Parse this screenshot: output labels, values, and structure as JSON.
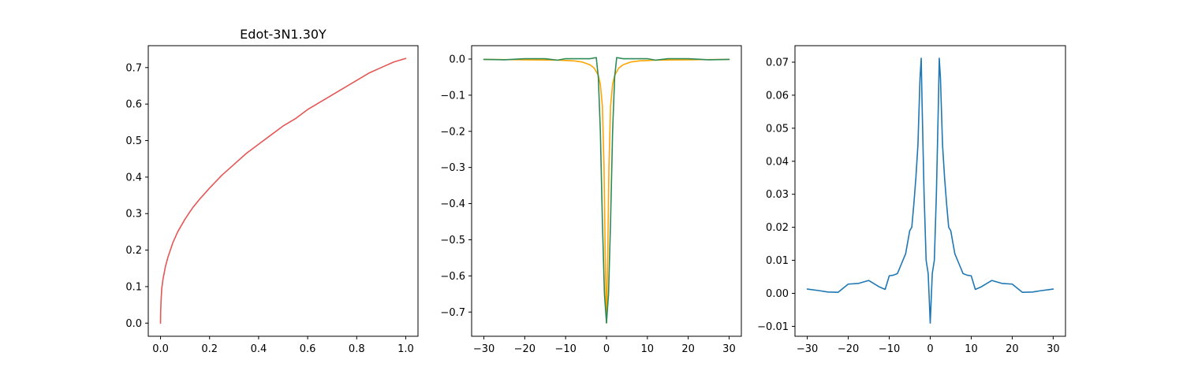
{
  "chart_data": [
    {
      "type": "line",
      "title": "Edot-3N1.30Y",
      "xlim": [
        -0.05,
        1.05
      ],
      "ylim": [
        -0.036,
        0.76
      ],
      "xticks": [
        0.0,
        0.2,
        0.4,
        0.6,
        0.8,
        1.0
      ],
      "xtick_labels": [
        "0.0",
        "0.2",
        "0.4",
        "0.6",
        "0.8",
        "1.0"
      ],
      "yticks": [
        0.0,
        0.1,
        0.2,
        0.3,
        0.4,
        0.5,
        0.6,
        0.7
      ],
      "ytick_labels": [
        "0.0",
        "0.1",
        "0.2",
        "0.3",
        "0.4",
        "0.5",
        "0.6",
        "0.7"
      ],
      "grid": false,
      "series": [
        {
          "color": "#e45756",
          "x": [
            0,
            0.0005,
            0.002,
            0.005,
            0.01,
            0.02,
            0.03,
            0.05,
            0.07,
            0.1,
            0.13,
            0.16,
            0.2,
            0.25,
            0.3,
            0.35,
            0.4,
            0.45,
            0.5,
            0.55,
            0.6,
            0.65,
            0.7,
            0.75,
            0.8,
            0.85,
            0.9,
            0.95,
            1.0
          ],
          "y": [
            0,
            0.03,
            0.06,
            0.095,
            0.12,
            0.155,
            0.18,
            0.22,
            0.25,
            0.285,
            0.315,
            0.34,
            0.37,
            0.405,
            0.435,
            0.465,
            0.49,
            0.515,
            0.54,
            0.56,
            0.585,
            0.605,
            0.625,
            0.645,
            0.665,
            0.685,
            0.7,
            0.715,
            0.725
          ]
        }
      ]
    },
    {
      "type": "line",
      "title": "",
      "xlim": [
        -33,
        33
      ],
      "ylim": [
        -0.767,
        0.037
      ],
      "xticks": [
        -30,
        -20,
        -10,
        0,
        10,
        20,
        30
      ],
      "xtick_labels": [
        "−30",
        "−20",
        "−10",
        "0",
        "10",
        "20",
        "30"
      ],
      "yticks": [
        0.0,
        -0.1,
        -0.2,
        -0.3,
        -0.4,
        -0.5,
        -0.6,
        -0.7
      ],
      "ytick_labels": [
        "0.0",
        "−0.1",
        "−0.2",
        "−0.3",
        "−0.4",
        "−0.5",
        "−0.6",
        "−0.7"
      ],
      "grid": false,
      "series": [
        {
          "color": "#ffa500",
          "x": [
            -30,
            -20,
            -12,
            -8,
            -6,
            -4,
            -3,
            -2,
            -1.5,
            -1,
            -0.6,
            -0.3,
            0,
            0.3,
            0.6,
            1,
            1.5,
            2,
            3,
            4,
            6,
            8,
            12,
            20,
            30
          ],
          "y": [
            -0.001,
            -0.002,
            -0.003,
            -0.005,
            -0.008,
            -0.016,
            -0.025,
            -0.045,
            -0.07,
            -0.13,
            -0.3,
            -0.55,
            -0.73,
            -0.55,
            -0.3,
            -0.13,
            -0.07,
            -0.045,
            -0.025,
            -0.016,
            -0.008,
            -0.005,
            -0.003,
            -0.002,
            -0.001
          ]
        },
        {
          "color": "#2e8b57",
          "x": [
            -30,
            -25,
            -20,
            -15,
            -12,
            -10,
            -6,
            -4,
            -3,
            -2.5,
            -2,
            -1.5,
            -1,
            -0.5,
            0,
            0.5,
            1,
            1.5,
            2,
            2.5,
            3,
            4,
            6,
            10,
            12,
            15,
            20,
            25,
            30
          ],
          "y": [
            -0.001,
            -0.002,
            0.001,
            0.001,
            -0.003,
            0.001,
            0.001,
            0.001,
            0.003,
            0.004,
            -0.05,
            -0.2,
            -0.45,
            -0.65,
            -0.73,
            -0.65,
            -0.45,
            -0.2,
            -0.05,
            0.004,
            0.003,
            0.001,
            0.001,
            0.001,
            -0.003,
            0.001,
            0.001,
            -0.002,
            -0.001
          ]
        }
      ]
    },
    {
      "type": "line",
      "title": "",
      "xlim": [
        -33,
        33
      ],
      "ylim": [
        -0.013,
        0.075
      ],
      "xticks": [
        -30,
        -20,
        -10,
        0,
        10,
        20,
        30
      ],
      "xtick_labels": [
        "−30",
        "−20",
        "−10",
        "0",
        "10",
        "20",
        "30"
      ],
      "yticks": [
        -0.01,
        0.0,
        0.01,
        0.02,
        0.03,
        0.04,
        0.05,
        0.06,
        0.07
      ],
      "ytick_labels": [
        "−0.01",
        "0.00",
        "0.01",
        "0.02",
        "0.03",
        "0.04",
        "0.05",
        "0.06",
        "0.07"
      ],
      "grid": false,
      "series": [
        {
          "color": "#1f77b4",
          "x": [
            -30,
            -27,
            -25,
            -22.5,
            -20,
            -17.5,
            -15,
            -12.5,
            -11,
            -10,
            -9,
            -8,
            -7,
            -6,
            -5,
            -4.5,
            -4,
            -3.5,
            -3,
            -2.5,
            -2.2,
            -2,
            -1.5,
            -1,
            -0.5,
            0,
            0.5,
            1,
            1.5,
            2,
            2.2,
            2.5,
            3,
            3.5,
            4,
            4.5,
            5,
            6,
            7,
            8,
            9,
            10,
            11,
            12.5,
            15,
            17.5,
            20,
            22.5,
            25,
            27,
            30
          ],
          "y": [
            0.0013,
            0.0008,
            0.0004,
            0.0003,
            0.0028,
            0.003,
            0.0039,
            0.002,
            0.0012,
            0.0053,
            0.0055,
            0.006,
            0.009,
            0.012,
            0.019,
            0.02,
            0.027,
            0.035,
            0.045,
            0.065,
            0.0712,
            0.058,
            0.03,
            0.01,
            0.006,
            -0.009,
            0.006,
            0.01,
            0.03,
            0.058,
            0.0712,
            0.065,
            0.045,
            0.035,
            0.027,
            0.02,
            0.019,
            0.012,
            0.009,
            0.006,
            0.0055,
            0.0053,
            0.0012,
            0.002,
            0.0039,
            0.003,
            0.0028,
            0.0003,
            0.0004,
            0.0008,
            0.0013
          ]
        }
      ]
    }
  ]
}
